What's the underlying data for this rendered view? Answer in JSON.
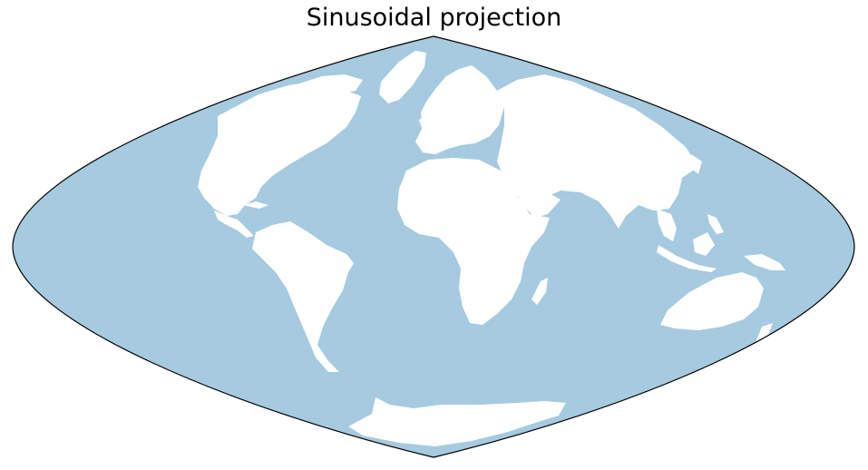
{
  "title": "Sinusoidal projection",
  "map": {
    "projection": "sinusoidal",
    "ocean_color": "#a6cadf",
    "land_color": "#ffffff",
    "outline_color": "#000000"
  }
}
